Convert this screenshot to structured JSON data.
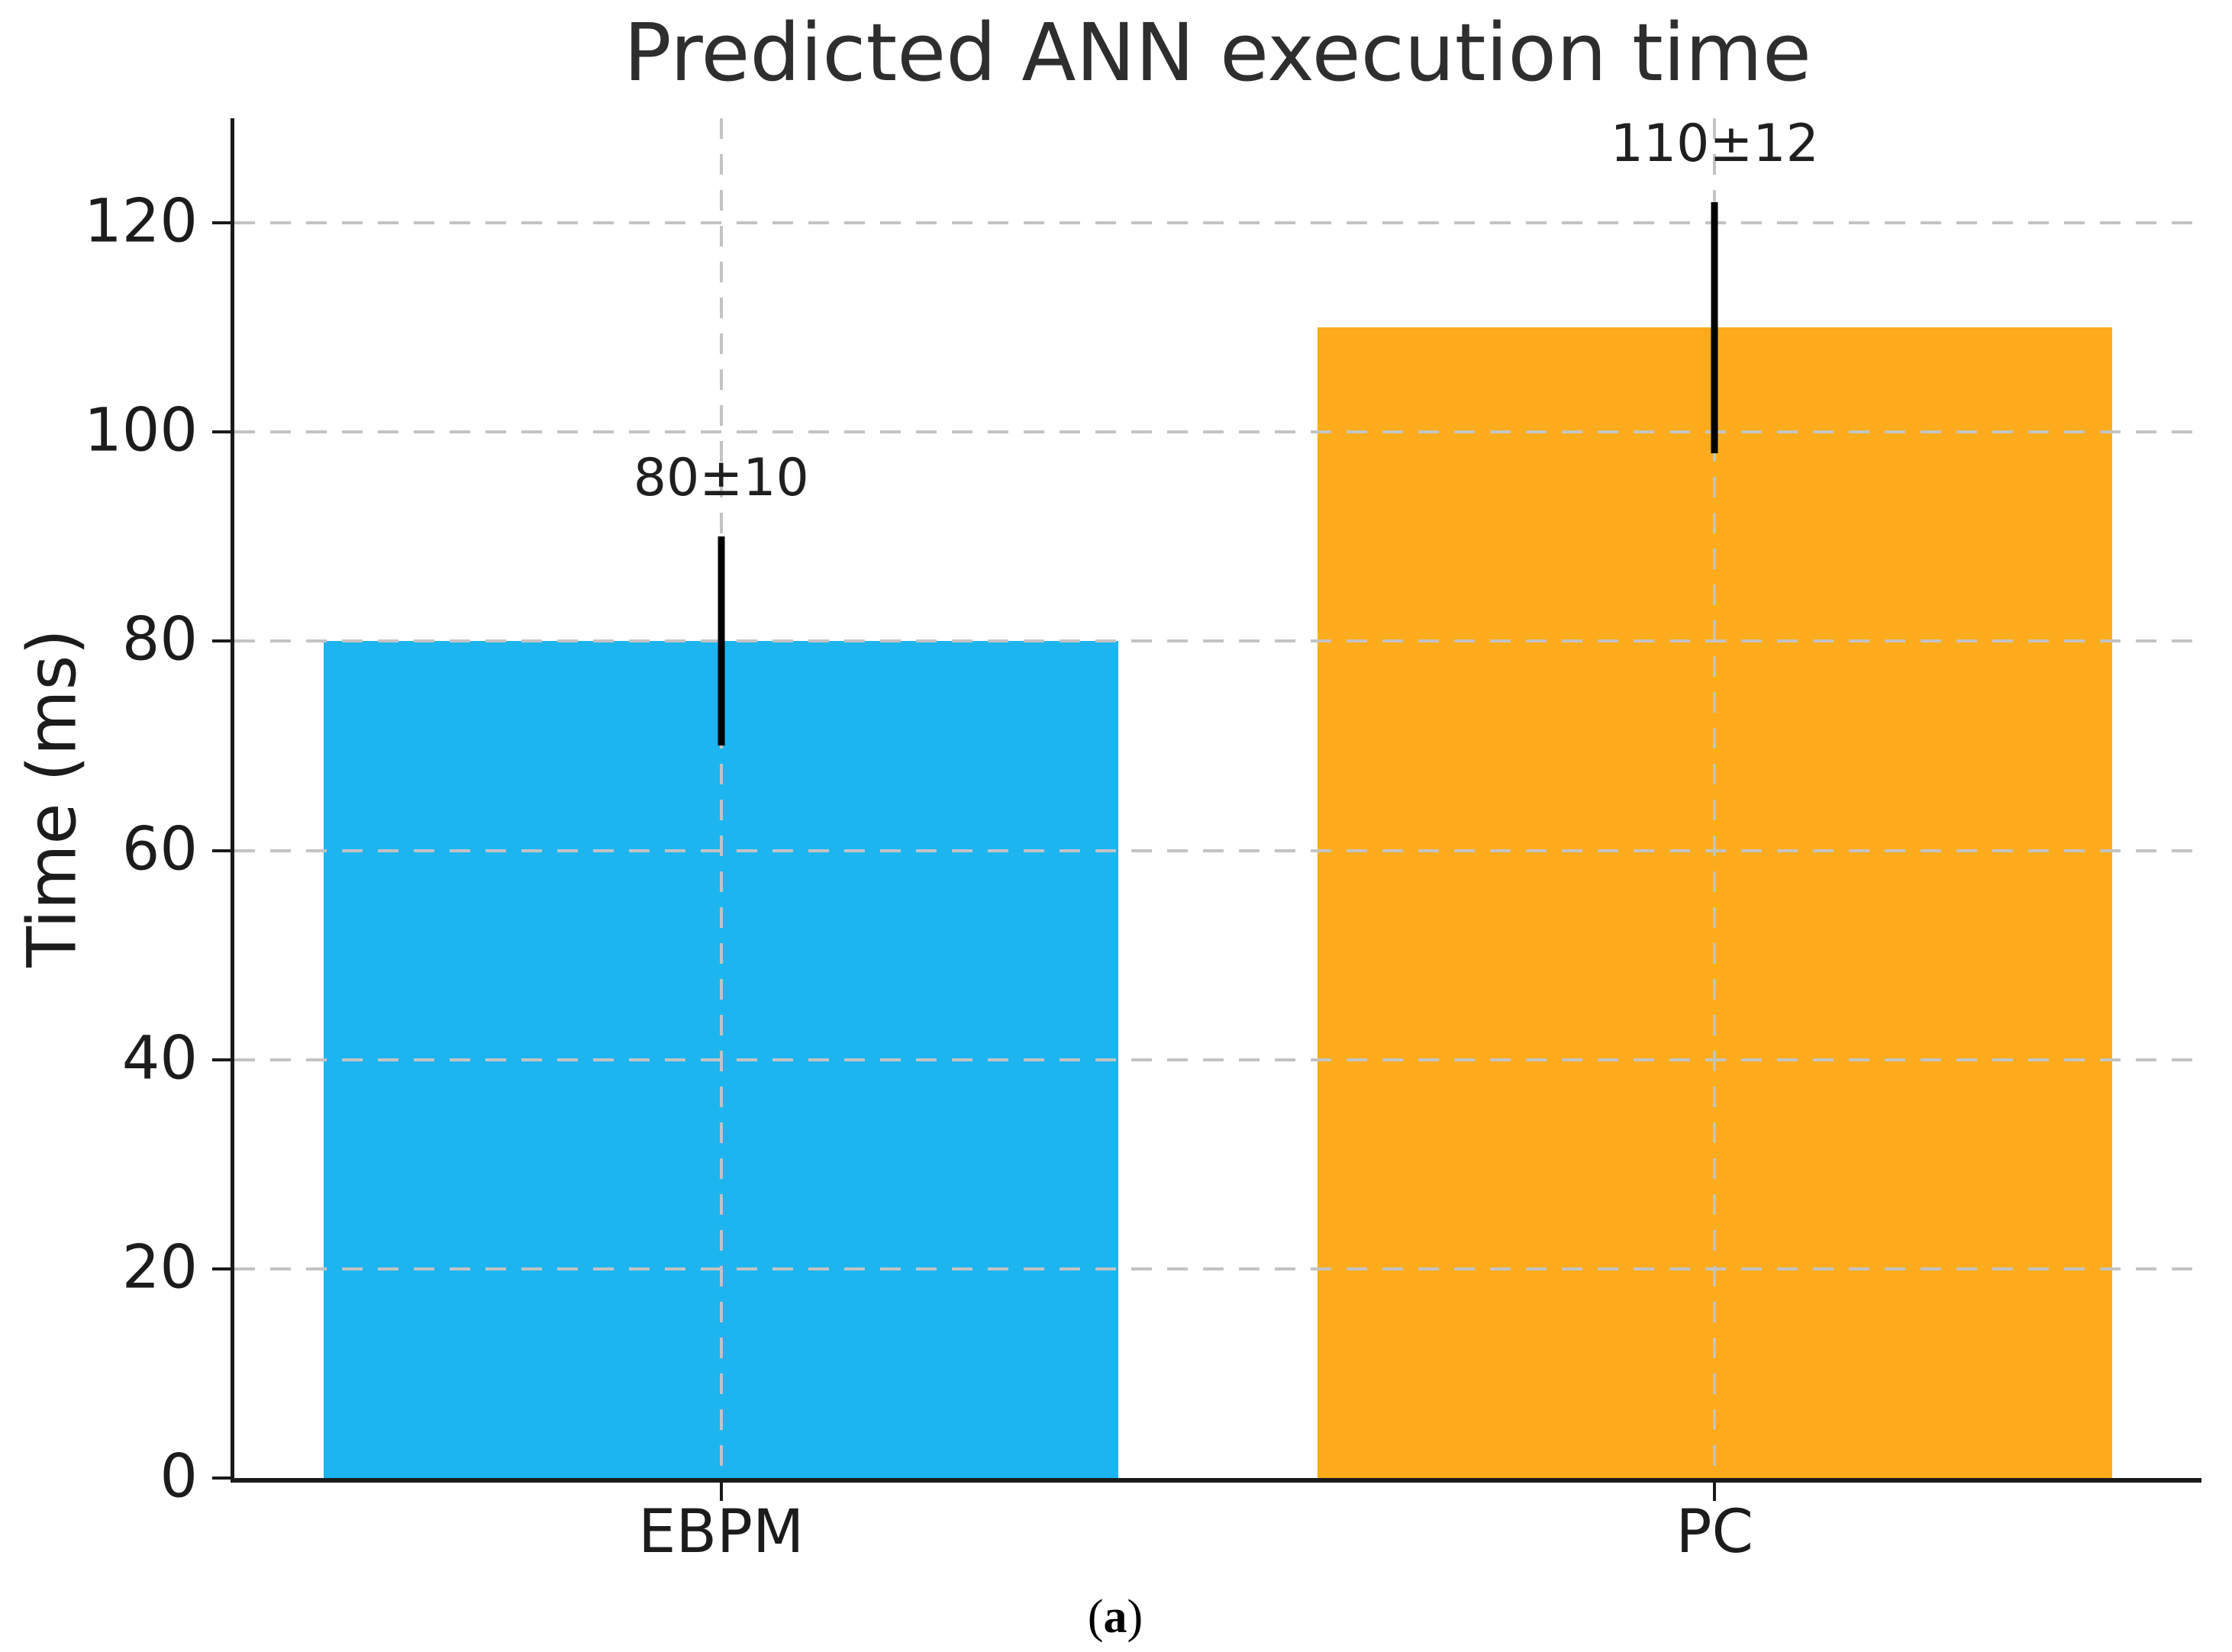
{
  "chart_data": {
    "type": "bar",
    "title": "Predicted ANN execution time",
    "xlabel": "",
    "ylabel": "Time (ms)",
    "categories": [
      "EBPM",
      "PC"
    ],
    "values": [
      80,
      110
    ],
    "errors": [
      10,
      12
    ],
    "bar_labels": [
      "80±10",
      "110±12"
    ],
    "bar_colors": [
      "#1cb5f0",
      "#fbab1c"
    ],
    "error_bar_color": "#000000",
    "yticks": [
      0,
      20,
      40,
      60,
      80,
      100,
      120
    ],
    "ylim": [
      0,
      130
    ],
    "xlim": [
      -0.49,
      1.49
    ],
    "bar_positions": [
      0,
      1
    ],
    "bar_width": 0.8,
    "grid": {
      "visible": true,
      "style": "dashed",
      "color": "#c3c3c3",
      "above_bars": true,
      "axes": "both"
    },
    "legend": {
      "visible": false
    },
    "spines": [
      "left",
      "bottom"
    ]
  },
  "caption": {
    "open": "(",
    "letter": "a",
    "close": ")"
  }
}
